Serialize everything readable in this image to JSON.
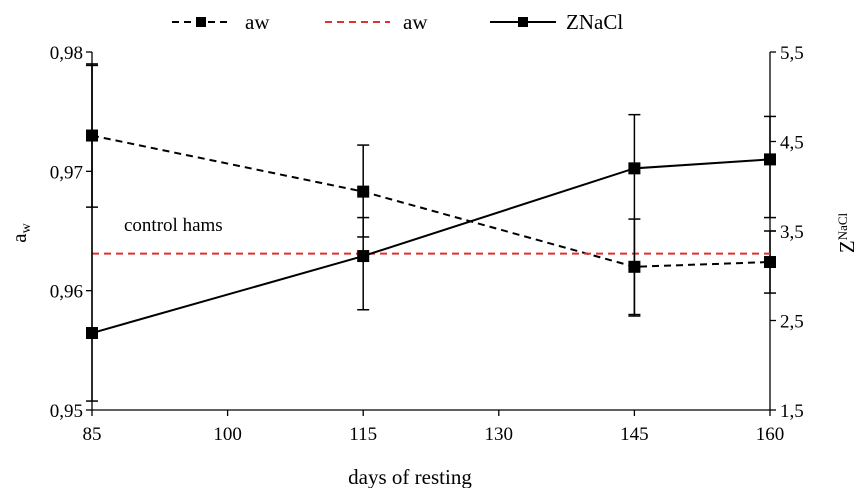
{
  "chart_data": {
    "type": "line",
    "xlabel": "days of resting",
    "ylabel_main": "a",
    "ylabel_sub": "w",
    "y2label_main": "Z",
    "y2label_sup": "NaCl",
    "x_ticks": [
      85,
      100,
      115,
      130,
      145,
      160
    ],
    "xlim": [
      85,
      160
    ],
    "ylim": [
      0.95,
      0.98
    ],
    "y_ticks": [
      "0,95",
      "0,96",
      "0,97",
      "0,98"
    ],
    "y_tick_values": [
      0.95,
      0.96,
      0.97,
      0.98
    ],
    "y2lim": [
      1.5,
      5.5
    ],
    "y2_ticks": [
      "1,5",
      "2,5",
      "3,5",
      "4,5",
      "5,5"
    ],
    "y2_tick_values": [
      1.5,
      2.5,
      3.5,
      4.5,
      5.5
    ],
    "grid": false,
    "legend_position": "top",
    "annotation": "control hams",
    "series": [
      {
        "name": "aw",
        "style": "dashed",
        "color": "#000000",
        "marker": "square",
        "axis": "left",
        "x": [
          85,
          115,
          145,
          160
        ],
        "y": [
          0.973,
          0.9683,
          0.962,
          0.9624
        ],
        "err_low": [
          0.967,
          0.9645,
          0.958,
          0.9598
        ],
        "err_high": [
          0.979,
          0.9722,
          0.966,
          0.965
        ]
      },
      {
        "name": "aw",
        "style": "dashed",
        "color": "#e03030",
        "marker": "none",
        "axis": "left",
        "x": [
          85,
          160
        ],
        "y": [
          0.9631,
          0.9631
        ]
      },
      {
        "name": "ZNaCl",
        "style": "solid",
        "color": "#000000",
        "marker": "square",
        "axis": "right",
        "x": [
          85,
          115,
          145,
          160
        ],
        "y": [
          2.36,
          3.22,
          4.2,
          4.3
        ],
        "err_low": [
          1.6,
          2.62,
          2.55,
          3.65
        ],
        "err_high": [
          5.35,
          3.65,
          4.8,
          4.78
        ]
      }
    ]
  }
}
